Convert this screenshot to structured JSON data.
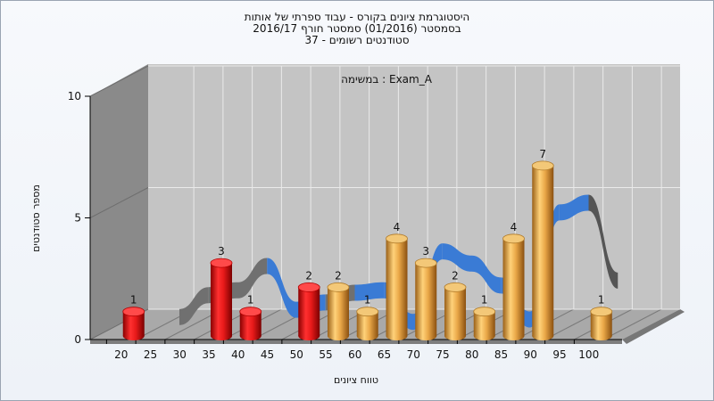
{
  "header": {
    "title_line1": "היסטוגרמת ציונים בקורס - עבוד ספרתי של אותות",
    "title_line2": "בסמסטר  (01/2016)  סמסטר חורף 2016/17",
    "title_line3": "סטודנטים רשומים - 37"
  },
  "chart_data": {
    "type": "bar",
    "subtitle": "Exam_A : במשימה",
    "xlabel": "טווח ציונים",
    "ylabel": "מספר סטודנטים",
    "x_ticks": [
      "20",
      "25",
      "30",
      "35",
      "40",
      "45",
      "50",
      "55",
      "60",
      "65",
      "70",
      "75",
      "80",
      "85",
      "90",
      "95",
      "100"
    ],
    "y_ticks": [
      0,
      5,
      10
    ],
    "ylim": [
      0,
      10
    ],
    "bars": [
      {
        "category": "20",
        "value": 1,
        "color": "#d01818"
      },
      {
        "category": "35",
        "value": 3,
        "color": "#d01818"
      },
      {
        "category": "40",
        "value": 1,
        "color": "#d01818"
      },
      {
        "category": "50",
        "value": 2,
        "color": "#d01818"
      },
      {
        "category": "55",
        "value": 2,
        "color": "#e0a040"
      },
      {
        "category": "60",
        "value": 1,
        "color": "#e0a040"
      },
      {
        "category": "65",
        "value": 4,
        "color": "#e0a040"
      },
      {
        "category": "70",
        "value": 3,
        "color": "#e0a040"
      },
      {
        "category": "75",
        "value": 2,
        "color": "#e0a040"
      },
      {
        "category": "80",
        "value": 1,
        "color": "#e0a040"
      },
      {
        "category": "85",
        "value": 4,
        "color": "#e0a040"
      },
      {
        "category": "90",
        "value": 7,
        "color": "#e0a040"
      },
      {
        "category": "100",
        "value": 1,
        "color": "#e0a040"
      }
    ],
    "trend": {
      "x": [
        "25",
        "30",
        "35",
        "40",
        "45",
        "50",
        "55",
        "60",
        "65",
        "70",
        "75",
        "80",
        "85",
        "90",
        "95",
        "100"
      ],
      "values": [
        0.3,
        1.2,
        1.4,
        2.4,
        0.6,
        0.9,
        1.3,
        1.4,
        0.1,
        3.0,
        2.5,
        1.6,
        0.2,
        4.6,
        5.0,
        1.8
      ],
      "colors": [
        "#707070",
        "#707070",
        "#707070",
        "#3a7bd5",
        "#3a7bd5",
        "#707070",
        "#3a7bd5",
        "#3a7bd5",
        "#3a7bd5",
        "#3a7bd5",
        "#3a7bd5",
        "#3a7bd5",
        "#3a7bd5",
        "#3a7bd5",
        "#555555",
        "#555555"
      ]
    },
    "grid": true,
    "colors": {
      "plot_back": "#c4c4c4",
      "left_wall": "#8a8a8a",
      "floor": "#a9a9a9",
      "grid": "#eaeaea",
      "fail_bar": "#d01818",
      "pass_bar": "#e0a040"
    }
  }
}
